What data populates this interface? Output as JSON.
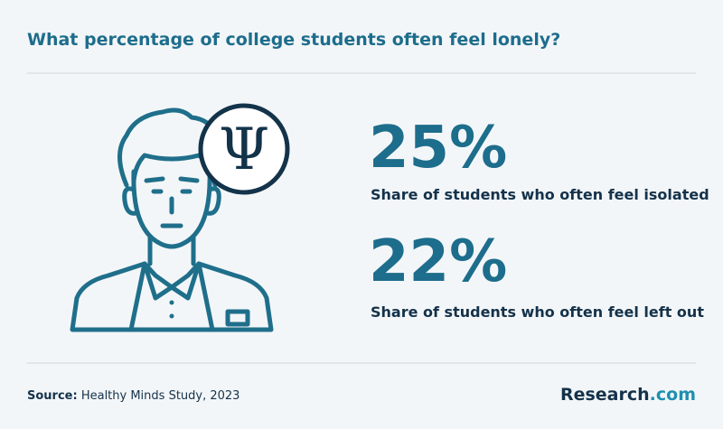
{
  "header": {
    "title": "What percentage of college students often feel lonely?"
  },
  "stats": [
    {
      "value": "25%",
      "description": "Share of students who often feel isolated"
    },
    {
      "value": "22%",
      "description": "Share of students who often feel left out"
    }
  ],
  "footer": {
    "source_label": "Source:",
    "source": "Healthy Minds Study, 2023",
    "brand": {
      "name": "Research",
      "suffix": ".com"
    }
  }
}
